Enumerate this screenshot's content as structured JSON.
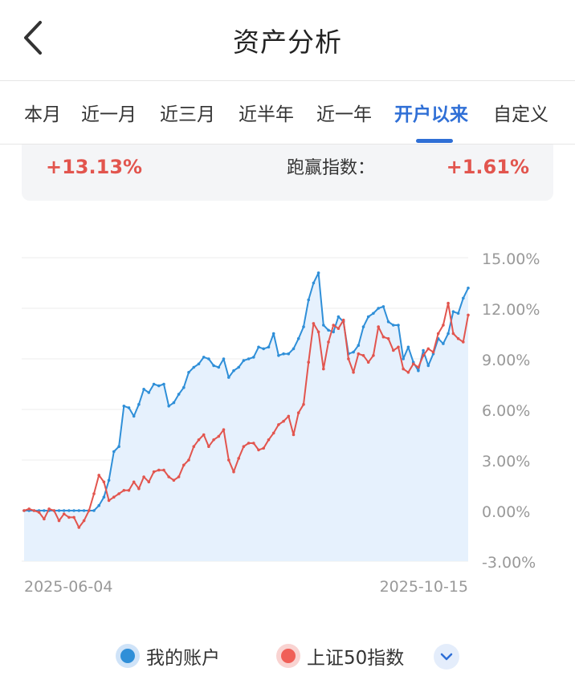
{
  "header": {
    "title": "资产分析"
  },
  "tabs": [
    {
      "label": "本月",
      "active": false
    },
    {
      "label": "近一月",
      "active": false
    },
    {
      "label": "近三月",
      "active": false
    },
    {
      "label": "近半年",
      "active": false
    },
    {
      "label": "近一年",
      "active": false
    },
    {
      "label": "开户以来",
      "active": true
    },
    {
      "label": "自定义",
      "active": false
    }
  ],
  "summary": {
    "return_value": "+13.13%",
    "beat_label": "跑赢指数：",
    "beat_value": "+1.61%"
  },
  "legend": {
    "account_label": "我的账户",
    "index_label": "上证50指数"
  },
  "colors": {
    "accent": "#2f6fd6",
    "account_line": "#2f8fd8",
    "index_line": "#e2554e",
    "fill": "#e6f1fd"
  },
  "chart_data": {
    "type": "line",
    "x_start_label": "2025-06-04",
    "x_end_label": "2025-10-15",
    "ylim": [
      -3,
      15
    ],
    "y_tick_labels": [
      "15.00%",
      "12.00%",
      "9.00%",
      "6.00%",
      "3.00%",
      "0.00%",
      "-3.00%"
    ],
    "y_ticks": [
      15,
      12,
      9,
      6,
      3,
      0,
      -3
    ],
    "grid": true,
    "series": [
      {
        "name": "我的账户",
        "color": "#2f8fd8",
        "fill": true,
        "values": [
          0,
          0,
          0,
          0,
          0,
          0,
          0,
          0,
          0,
          0,
          0,
          0,
          0,
          0,
          0,
          0.3,
          0.8,
          1.8,
          3.5,
          3.8,
          6.2,
          6.1,
          5.6,
          6.3,
          7.2,
          7.0,
          7.5,
          7.4,
          7.5,
          6.2,
          6.4,
          6.9,
          7.3,
          8.2,
          8.5,
          8.7,
          9.1,
          9.0,
          8.6,
          8.5,
          9.0,
          7.9,
          8.3,
          8.5,
          8.9,
          9.0,
          9.1,
          9.7,
          9.6,
          9.7,
          10.5,
          9.2,
          9.3,
          9.3,
          9.6,
          10.2,
          10.9,
          12.5,
          13.5,
          14.1,
          11.0,
          10.7,
          10.6,
          11.5,
          11.2,
          9.3,
          9.4,
          9.8,
          10.9,
          11.5,
          11.7,
          12.0,
          12.1,
          11.2,
          11.0,
          11.0,
          9.0,
          9.7,
          8.8,
          8.3,
          9.5,
          8.6,
          9.3,
          10.2,
          9.9,
          10.5,
          11.8,
          11.7,
          12.6,
          13.2
        ]
      },
      {
        "name": "上证50指数",
        "color": "#e2554e",
        "fill": false,
        "values": [
          0,
          0.1,
          0,
          -0.1,
          -0.5,
          0.1,
          0,
          -0.6,
          -0.2,
          -0.4,
          -0.4,
          -1.0,
          -0.6,
          0,
          1.0,
          2.1,
          1.7,
          0.6,
          0.8,
          1.0,
          1.2,
          1.2,
          1.7,
          1.3,
          2.0,
          1.7,
          2.3,
          2.4,
          2.4,
          2.0,
          1.8,
          2.0,
          2.7,
          3.0,
          3.8,
          4.2,
          4.5,
          3.8,
          4.2,
          4.4,
          4.8,
          3.0,
          2.3,
          3.1,
          3.8,
          4.0,
          4.0,
          3.6,
          3.7,
          4.2,
          4.6,
          5.1,
          5.3,
          5.6,
          4.5,
          5.8,
          6.3,
          8.8,
          11.1,
          10.6,
          8.4,
          10.0,
          11.0,
          10.8,
          11.3,
          9.0,
          8.2,
          9.3,
          9.2,
          8.8,
          9.2,
          10.9,
          10.3,
          10.2,
          9.5,
          9.7,
          8.4,
          8.2,
          8.7,
          8.5,
          9.2,
          9.6,
          9.4,
          10.5,
          11.0,
          12.3,
          10.5,
          10.2,
          10.0,
          11.6
        ]
      }
    ]
  }
}
